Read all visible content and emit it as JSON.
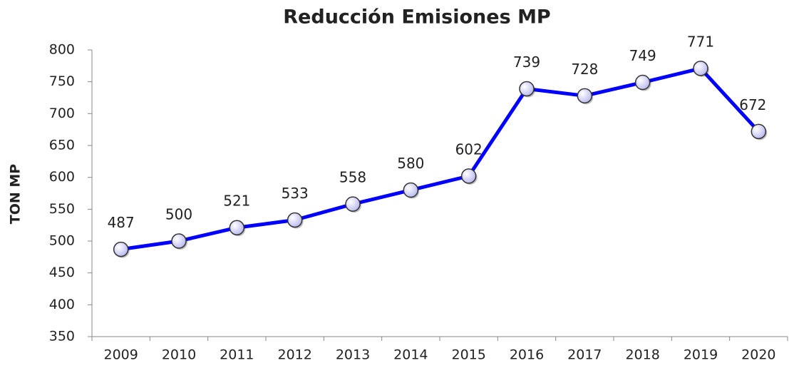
{
  "chart_data": {
    "type": "line",
    "title": "Reducción Emisiones MP",
    "ylabel": "TON MP",
    "categories": [
      "2009",
      "2010",
      "2011",
      "2012",
      "2013",
      "2014",
      "2015",
      "2016",
      "2017",
      "2018",
      "2019",
      "2020"
    ],
    "values": [
      487,
      500,
      521,
      533,
      558,
      580,
      602,
      739,
      728,
      749,
      771,
      672
    ],
    "color": "#0000ff",
    "marker_color": "#b8b8f0",
    "ylim": [
      350,
      800
    ],
    "yticks": [
      350,
      400,
      450,
      500,
      550,
      600,
      650,
      700,
      750,
      800
    ],
    "grid": false
  }
}
